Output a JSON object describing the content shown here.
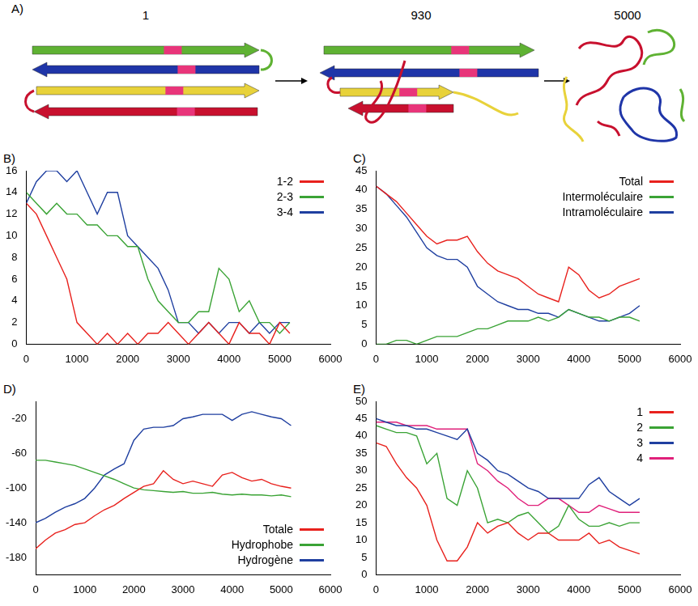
{
  "figure_a": {
    "label": "A)",
    "frames": [
      "1",
      "930",
      "5000"
    ]
  },
  "chart_data": [
    {
      "label": "B)",
      "type": "line",
      "grid": false,
      "legend": "upper right",
      "x": [
        0,
        200,
        400,
        600,
        800,
        1000,
        1200,
        1400,
        1600,
        1800,
        2000,
        2200,
        2400,
        2600,
        2800,
        3000,
        3200,
        3400,
        3600,
        3800,
        4000,
        4200,
        4400,
        4600,
        4800,
        5000,
        5200
      ],
      "xlim": [
        0,
        6000
      ],
      "xticks": [
        0,
        1000,
        2000,
        3000,
        4000,
        5000,
        6000
      ],
      "ylim": [
        0,
        16
      ],
      "yticks": [
        0,
        2,
        4,
        6,
        8,
        10,
        12,
        14,
        16
      ],
      "series": [
        {
          "name": "1-2",
          "color": "#e8211d",
          "values": [
            13,
            12,
            10,
            8,
            6,
            2,
            1,
            0,
            1,
            0,
            1,
            0,
            1,
            1,
            2,
            1,
            0,
            1,
            2,
            1,
            0,
            2,
            1,
            1,
            0,
            2,
            1
          ]
        },
        {
          "name": "2-3",
          "color": "#3aa335",
          "values": [
            14,
            13,
            12,
            13,
            12,
            12,
            11,
            11,
            10,
            10,
            9,
            9,
            6,
            4,
            3,
            2,
            2,
            3,
            3,
            7,
            6,
            3,
            4,
            2,
            2,
            1,
            2
          ]
        },
        {
          "name": "3-4",
          "color": "#1f3fa0",
          "values": [
            13,
            15,
            16,
            16,
            15,
            16,
            14,
            12,
            14,
            14,
            10,
            9,
            8,
            7,
            5,
            2,
            2,
            1,
            2,
            1,
            2,
            2,
            1,
            2,
            1,
            2,
            2
          ]
        }
      ]
    },
    {
      "label": "C)",
      "type": "line",
      "grid": false,
      "legend": "upper right",
      "x": [
        0,
        200,
        400,
        600,
        800,
        1000,
        1200,
        1400,
        1600,
        1800,
        2000,
        2200,
        2400,
        2600,
        2800,
        3000,
        3200,
        3400,
        3600,
        3800,
        4000,
        4200,
        4400,
        4600,
        4800,
        5000,
        5200
      ],
      "xlim": [
        0,
        6000
      ],
      "xticks": [
        0,
        1000,
        2000,
        3000,
        4000,
        5000,
        6000
      ],
      "ylim": [
        0,
        45
      ],
      "yticks": [
        0,
        5,
        10,
        15,
        20,
        25,
        30,
        35,
        40,
        45
      ],
      "series": [
        {
          "name": "Total",
          "color": "#e8211d",
          "values": [
            41,
            39,
            37,
            34,
            31,
            28,
            26,
            27,
            27,
            28,
            24,
            21,
            19,
            18,
            17,
            15,
            13,
            12,
            11,
            20,
            18,
            14,
            12,
            13,
            15,
            16,
            17
          ]
        },
        {
          "name": "Intermoléculaire",
          "color": "#3aa335",
          "values": [
            0,
            0,
            1,
            1,
            0,
            1,
            2,
            2,
            2,
            3,
            4,
            4,
            5,
            6,
            6,
            6,
            7,
            6,
            7,
            9,
            8,
            7,
            7,
            6,
            7,
            7,
            6
          ]
        },
        {
          "name": "Intramoléculaire",
          "color": "#1f3fa0",
          "values": [
            41,
            39,
            36,
            33,
            29,
            25,
            23,
            22,
            22,
            20,
            15,
            13,
            11,
            10,
            9,
            9,
            8,
            8,
            7,
            9,
            8,
            7,
            6,
            6,
            7,
            8,
            10
          ]
        }
      ]
    },
    {
      "label": "D)",
      "type": "line",
      "grid": false,
      "legend": "lower right",
      "x": [
        0,
        200,
        400,
        600,
        800,
        1000,
        1200,
        1400,
        1600,
        1800,
        2000,
        2200,
        2400,
        2600,
        2800,
        3000,
        3200,
        3400,
        3600,
        3800,
        4000,
        4200,
        4400,
        4600,
        4800,
        5000,
        5200
      ],
      "xlim": [
        0,
        6000
      ],
      "xticks": [
        0,
        1000,
        2000,
        3000,
        4000,
        5000,
        6000
      ],
      "ylim": [
        -200,
        0
      ],
      "yticks": [
        -180,
        -140,
        -100,
        -60,
        -20
      ],
      "series": [
        {
          "name": "Totale",
          "color": "#e8211d",
          "values": [
            -170,
            -160,
            -152,
            -148,
            -142,
            -140,
            -132,
            -125,
            -120,
            -112,
            -105,
            -98,
            -95,
            -80,
            -90,
            -95,
            -92,
            -95,
            -98,
            -85,
            -82,
            -88,
            -92,
            -90,
            -95,
            -98,
            -100
          ]
        },
        {
          "name": "Hydrophobe",
          "color": "#3aa335",
          "values": [
            -68,
            -68,
            -70,
            -72,
            -74,
            -78,
            -82,
            -86,
            -90,
            -95,
            -100,
            -102,
            -103,
            -104,
            -105,
            -104,
            -106,
            -106,
            -105,
            -107,
            -108,
            -107,
            -108,
            -108,
            -109,
            -108,
            -110
          ]
        },
        {
          "name": "Hydrogène",
          "color": "#1f3fa0",
          "values": [
            -140,
            -135,
            -128,
            -122,
            -118,
            -112,
            -100,
            -85,
            -78,
            -72,
            -45,
            -32,
            -30,
            -30,
            -28,
            -20,
            -18,
            -15,
            -15,
            -15,
            -22,
            -15,
            -12,
            -15,
            -18,
            -20,
            -28
          ]
        }
      ]
    },
    {
      "label": "E)",
      "type": "line",
      "grid": false,
      "legend": "upper right",
      "x": [
        0,
        200,
        400,
        600,
        800,
        1000,
        1200,
        1400,
        1600,
        1800,
        2000,
        2200,
        2400,
        2600,
        2800,
        3000,
        3200,
        3400,
        3600,
        3800,
        4000,
        4200,
        4400,
        4600,
        4800,
        5000,
        5200
      ],
      "xlim": [
        0,
        6000
      ],
      "xticks": [
        0,
        1000,
        2000,
        3000,
        4000,
        5000,
        6000
      ],
      "ylim": [
        0,
        50
      ],
      "yticks": [
        0,
        5,
        10,
        15,
        20,
        25,
        30,
        35,
        40,
        45,
        50
      ],
      "series": [
        {
          "name": "1",
          "color": "#e8211d",
          "values": [
            38,
            37,
            32,
            28,
            25,
            20,
            10,
            4,
            4,
            8,
            15,
            12,
            14,
            15,
            12,
            10,
            12,
            12,
            10,
            10,
            10,
            12,
            9,
            10,
            8,
            7,
            6
          ]
        },
        {
          "name": "2",
          "color": "#3aa335",
          "values": [
            43,
            42,
            41,
            41,
            40,
            32,
            35,
            22,
            20,
            30,
            25,
            15,
            16,
            15,
            17,
            18,
            15,
            12,
            14,
            20,
            16,
            14,
            14,
            15,
            14,
            15,
            15
          ]
        },
        {
          "name": "3",
          "color": "#1f3fa0",
          "values": [
            45,
            44,
            43,
            43,
            42,
            42,
            41,
            40,
            39,
            42,
            35,
            33,
            30,
            29,
            27,
            25,
            24,
            22,
            22,
            22,
            22,
            26,
            28,
            24,
            22,
            20,
            22
          ]
        },
        {
          "name": "4",
          "color": "#e0217a",
          "values": [
            44,
            44,
            44,
            43,
            43,
            43,
            42,
            42,
            42,
            42,
            32,
            30,
            27,
            25,
            22,
            20,
            20,
            22,
            22,
            20,
            18,
            18,
            20,
            19,
            18,
            18,
            18
          ]
        }
      ]
    }
  ]
}
